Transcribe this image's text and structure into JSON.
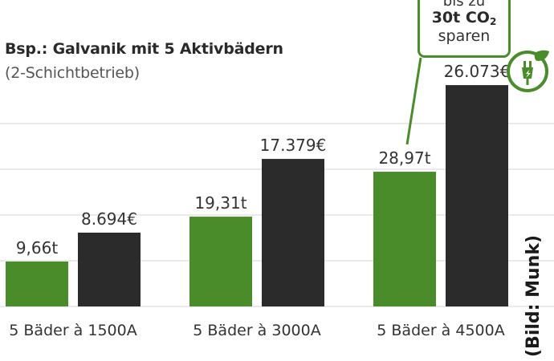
{
  "chart_data": {
    "type": "bar",
    "title": "Bsp.: Galvanik mit 5 Aktivbädern",
    "subtitle": "(2-Schichtbetrieb)",
    "categories": [
      "5 Bäder à 1500A",
      "5 Bäder à 3000A",
      "5 Bäder à 4500A"
    ],
    "series": [
      {
        "values": [
          9.66,
          19.31,
          28.97
        ],
        "labels": [
          "9,66t",
          "19,31t",
          "28,97t"
        ],
        "color": "#4a8c2a"
      },
      {
        "values": [
          8694,
          17379,
          26073
        ],
        "labels": [
          "8.694€",
          "17.379€",
          "26.073€"
        ],
        "color": "#2b2b2b"
      }
    ],
    "grid": true
  },
  "callout": {
    "line1": "bis zu",
    "line2_main": "30t CO",
    "line2_sub": "2",
    "line3": "sparen",
    "border_color": "#4a8c2a"
  },
  "icon": "eco-plug-leaf-icon",
  "credit": "(Bild: Munk)"
}
